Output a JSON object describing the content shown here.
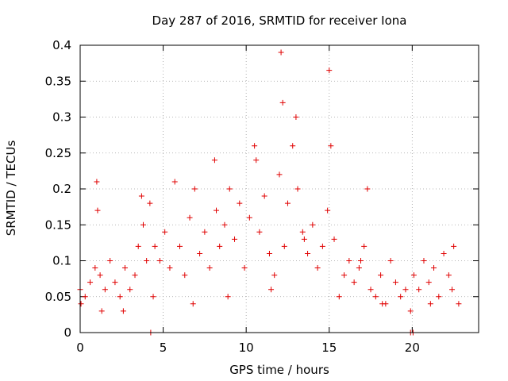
{
  "chart_data": {
    "type": "scatter",
    "title": "Day 287 of 2016, SRMTID for receiver Iona",
    "xlabel": "GPS time / hours",
    "ylabel": "SRMTID / TECUs",
    "xlim": [
      0,
      24
    ],
    "ylim": [
      0,
      0.4
    ],
    "xticks": [
      0,
      5,
      10,
      15,
      20
    ],
    "yticks": [
      0,
      0.05,
      0.1,
      0.15,
      0.2,
      0.25,
      0.3,
      0.35,
      0.4
    ],
    "grid": true,
    "marker": "+",
    "series": [
      {
        "name": "SRMTID",
        "color": "#e00000",
        "x": [
          0.0,
          0.3,
          0.6,
          0.9,
          1.0,
          1.2,
          1.5,
          1.8,
          2.1,
          2.4,
          2.7,
          3.0,
          3.3,
          3.5,
          3.7,
          3.8,
          4.0,
          4.2,
          4.5,
          4.8,
          5.1,
          5.4,
          5.7,
          6.0,
          6.3,
          6.6,
          6.9,
          7.2,
          7.5,
          7.8,
          8.1,
          8.2,
          8.4,
          8.7,
          9.0,
          9.3,
          9.6,
          9.9,
          10.2,
          10.5,
          10.6,
          10.8,
          11.1,
          11.4,
          11.7,
          12.0,
          12.1,
          12.2,
          12.3,
          12.5,
          12.8,
          13.0,
          13.1,
          13.4,
          13.7,
          14.0,
          14.3,
          14.6,
          14.9,
          15.0,
          15.1,
          15.3,
          15.6,
          15.9,
          16.2,
          16.5,
          16.8,
          17.1,
          17.3,
          17.5,
          17.8,
          18.1,
          18.4,
          18.7,
          19.0,
          19.3,
          19.6,
          19.9,
          20.1,
          20.4,
          20.7,
          21.0,
          21.3,
          21.6,
          21.9,
          22.2,
          22.5,
          22.8,
          4.25,
          19.9,
          20.05,
          0.05,
          1.05,
          1.3,
          2.6,
          4.4,
          6.8,
          8.9,
          11.5,
          13.5,
          16.9,
          18.2,
          21.1,
          22.4
        ],
        "y": [
          0.06,
          0.05,
          0.07,
          0.09,
          0.21,
          0.08,
          0.06,
          0.1,
          0.07,
          0.05,
          0.09,
          0.06,
          0.08,
          0.12,
          0.19,
          0.15,
          0.1,
          0.18,
          0.12,
          0.1,
          0.14,
          0.09,
          0.21,
          0.12,
          0.08,
          0.16,
          0.2,
          0.11,
          0.14,
          0.09,
          0.24,
          0.17,
          0.12,
          0.15,
          0.2,
          0.13,
          0.18,
          0.09,
          0.16,
          0.26,
          0.24,
          0.14,
          0.19,
          0.11,
          0.08,
          0.22,
          0.39,
          0.32,
          0.12,
          0.18,
          0.26,
          0.3,
          0.2,
          0.14,
          0.11,
          0.15,
          0.09,
          0.12,
          0.17,
          0.365,
          0.26,
          0.13,
          0.05,
          0.08,
          0.1,
          0.07,
          0.09,
          0.12,
          0.2,
          0.06,
          0.05,
          0.08,
          0.04,
          0.1,
          0.07,
          0.05,
          0.06,
          0.03,
          0.08,
          0.06,
          0.1,
          0.07,
          0.09,
          0.05,
          0.11,
          0.08,
          0.12,
          0.04,
          0.0,
          0.0,
          0.0,
          0.04,
          0.17,
          0.03,
          0.03,
          0.05,
          0.04,
          0.05,
          0.06,
          0.13,
          0.1,
          0.04,
          0.04,
          0.06
        ]
      }
    ]
  }
}
